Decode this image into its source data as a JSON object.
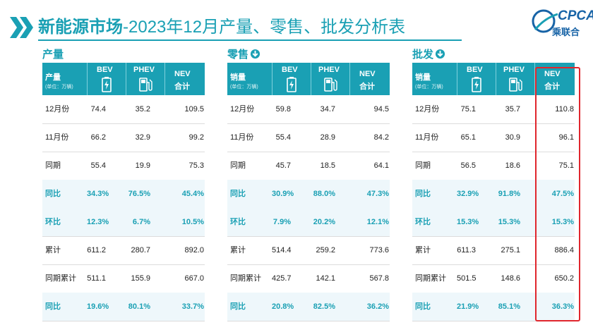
{
  "header": {
    "title_bold": "新能源市场",
    "title_rest": "-2023年12月产量、零售、批发分析表",
    "logo_text": "CPCA",
    "logo_sub": "乘联合"
  },
  "columns": {
    "bev": "BEV",
    "phev": "PHEV",
    "nev_top": "NEV",
    "nev_bottom": "合计",
    "unit": "(单位：万辆)"
  },
  "row_labels": [
    "12月份",
    "11月份",
    "同期",
    "同比",
    "环比",
    "累计",
    "同期累计",
    "同比"
  ],
  "highlight_rows": [
    3,
    4,
    7
  ],
  "sections": [
    {
      "title": "产量",
      "header_label": "产量",
      "rows": [
        [
          "74.4",
          "35.2",
          "109.5"
        ],
        [
          "66.2",
          "32.9",
          "99.2"
        ],
        [
          "55.4",
          "19.9",
          "75.3"
        ],
        [
          "34.3%",
          "76.5%",
          "45.4%"
        ],
        [
          "12.3%",
          "6.7%",
          "10.5%"
        ],
        [
          "611.2",
          "280.7",
          "892.0"
        ],
        [
          "511.1",
          "155.9",
          "667.0"
        ],
        [
          "19.6%",
          "80.1%",
          "33.7%"
        ]
      ]
    },
    {
      "title": "零售",
      "header_label": "销量",
      "rows": [
        [
          "59.8",
          "34.7",
          "94.5"
        ],
        [
          "55.4",
          "28.9",
          "84.2"
        ],
        [
          "45.7",
          "18.5",
          "64.1"
        ],
        [
          "30.9%",
          "88.0%",
          "47.3%"
        ],
        [
          "7.9%",
          "20.2%",
          "12.1%"
        ],
        [
          "514.4",
          "259.2",
          "773.6"
        ],
        [
          "425.7",
          "142.1",
          "567.8"
        ],
        [
          "20.8%",
          "82.5%",
          "36.2%"
        ]
      ]
    },
    {
      "title": "批发",
      "header_label": "销量",
      "rows": [
        [
          "75.1",
          "35.7",
          "110.8"
        ],
        [
          "65.1",
          "30.9",
          "96.1"
        ],
        [
          "56.5",
          "18.6",
          "75.1"
        ],
        [
          "32.9%",
          "91.8%",
          "47.5%"
        ],
        [
          "15.3%",
          "15.3%",
          "15.3%"
        ],
        [
          "611.3",
          "275.1",
          "886.4"
        ],
        [
          "501.5",
          "148.6",
          "650.2"
        ],
        [
          "21.9%",
          "85.1%",
          "36.3%"
        ]
      ]
    }
  ],
  "colors": {
    "accent": "#1aa0b4",
    "highlight_box": "#e0262d",
    "row_highlight": "#eef7fb"
  }
}
